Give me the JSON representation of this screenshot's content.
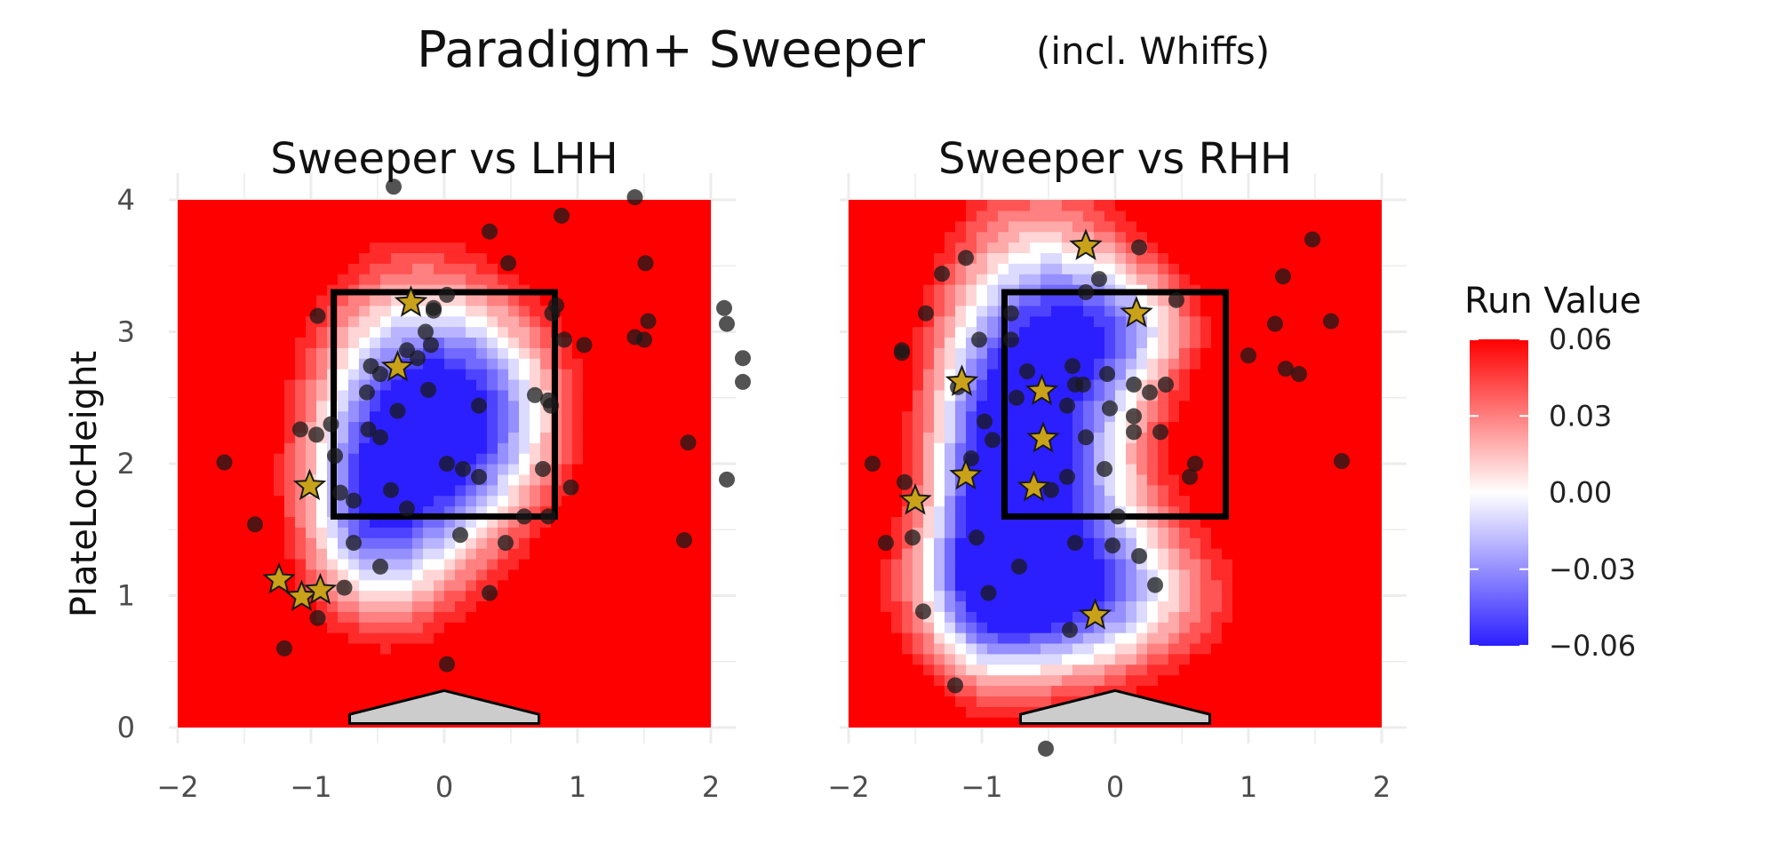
{
  "chart_data": {
    "type": "heatmap",
    "title": "Paradigm+ Sweeper",
    "subtitle": "(incl. Whiffs)",
    "ylabel": "PlateLocHeight",
    "xlabel": "",
    "xlim": [
      -2,
      2
    ],
    "ylim": [
      0,
      4
    ],
    "x_ticks": [
      "−2",
      "−1",
      "0",
      "1",
      "2"
    ],
    "y_ticks": [
      "0",
      "1",
      "2",
      "3",
      "4"
    ],
    "legend": {
      "title": "Run Value",
      "placement": "right",
      "range": [
        -0.06,
        0.06
      ],
      "ticks": [
        "0.06",
        "0.03",
        "0.00",
        "−0.03",
        "−0.06"
      ],
      "colors": {
        "low": "#2b1fff",
        "mid": "#ffffff",
        "high": "#ff0000"
      }
    },
    "strike_zone": {
      "x": [
        -0.83,
        0.83
      ],
      "y": [
        1.6,
        3.3
      ]
    },
    "panels": [
      {
        "title": "Sweeper vs LHH",
        "hotspots": [
          {
            "x": -0.3,
            "y": 2.2,
            "sx": 0.55,
            "sy": 0.9,
            "w": 0.13
          },
          {
            "x": 0.35,
            "y": 2.4,
            "sx": 0.5,
            "sy": 0.6,
            "w": 0.08
          },
          {
            "x": -0.6,
            "y": 1.5,
            "sx": 0.35,
            "sy": 0.5,
            "w": 0.05
          }
        ],
        "pitches": [
          {
            "x": -0.38,
            "y": 4.1
          },
          {
            "x": -1.65,
            "y": 2.01
          },
          {
            "x": -1.42,
            "y": 1.54
          },
          {
            "x": -1.2,
            "y": 0.6
          },
          {
            "x": -1.08,
            "y": 2.26
          },
          {
            "x": -0.96,
            "y": 2.22
          },
          {
            "x": -0.85,
            "y": 2.3
          },
          {
            "x": -0.82,
            "y": 2.06
          },
          {
            "x": -0.78,
            "y": 1.78
          },
          {
            "x": -0.75,
            "y": 1.06
          },
          {
            "x": -0.68,
            "y": 1.72
          },
          {
            "x": -0.68,
            "y": 1.4
          },
          {
            "x": -0.55,
            "y": 2.74
          },
          {
            "x": -0.58,
            "y": 2.54
          },
          {
            "x": -0.57,
            "y": 2.26
          },
          {
            "x": -0.48,
            "y": 2.2
          },
          {
            "x": -0.48,
            "y": 2.68
          },
          {
            "x": -0.28,
            "y": 2.86
          },
          {
            "x": -0.2,
            "y": 2.8
          },
          {
            "x": -0.14,
            "y": 3.0
          },
          {
            "x": -0.1,
            "y": 2.9
          },
          {
            "x": -0.08,
            "y": 3.18
          },
          {
            "x": 0.02,
            "y": 3.28
          },
          {
            "x": -0.35,
            "y": 2.4
          },
          {
            "x": -0.4,
            "y": 1.8
          },
          {
            "x": -0.28,
            "y": 1.66
          },
          {
            "x": -0.48,
            "y": 1.22
          },
          {
            "x": -0.12,
            "y": 2.56
          },
          {
            "x": 0.02,
            "y": 2.0
          },
          {
            "x": 0.14,
            "y": 1.96
          },
          {
            "x": 0.26,
            "y": 1.9
          },
          {
            "x": 0.46,
            "y": 1.4
          },
          {
            "x": 0.6,
            "y": 1.6
          },
          {
            "x": 0.74,
            "y": 1.96
          },
          {
            "x": 0.78,
            "y": 1.6
          },
          {
            "x": 0.12,
            "y": 1.46
          },
          {
            "x": 0.26,
            "y": 2.44
          },
          {
            "x": 0.34,
            "y": 1.02
          },
          {
            "x": 0.68,
            "y": 2.52
          },
          {
            "x": 0.78,
            "y": 2.48
          },
          {
            "x": 0.8,
            "y": 2.44
          },
          {
            "x": 0.9,
            "y": 2.94
          },
          {
            "x": 1.05,
            "y": 2.9
          },
          {
            "x": 0.95,
            "y": 1.82
          },
          {
            "x": 0.81,
            "y": 3.14
          },
          {
            "x": 0.84,
            "y": 3.2
          },
          {
            "x": -0.08,
            "y": 3.16
          },
          {
            "x": 0.34,
            "y": 3.76
          },
          {
            "x": 0.48,
            "y": 3.52
          },
          {
            "x": 0.88,
            "y": 3.88
          },
          {
            "x": 1.43,
            "y": 2.96
          },
          {
            "x": 1.5,
            "y": 2.94
          },
          {
            "x": 1.51,
            "y": 3.52
          },
          {
            "x": 1.53,
            "y": 3.08
          },
          {
            "x": 1.43,
            "y": 4.02
          },
          {
            "x": 1.83,
            "y": 2.16
          },
          {
            "x": 1.8,
            "y": 1.42
          },
          {
            "x": 2.1,
            "y": 3.18
          },
          {
            "x": 2.12,
            "y": 3.06
          },
          {
            "x": 2.24,
            "y": 2.8
          },
          {
            "x": 2.12,
            "y": 1.88
          },
          {
            "x": 2.24,
            "y": 2.62
          },
          {
            "x": -0.95,
            "y": 0.83
          },
          {
            "x": 0.02,
            "y": 0.48
          },
          {
            "x": -0.95,
            "y": 3.12
          }
        ],
        "stars": [
          {
            "x": -0.25,
            "y": 3.22
          },
          {
            "x": -0.35,
            "y": 2.73
          },
          {
            "x": -1.01,
            "y": 1.83
          },
          {
            "x": -1.24,
            "y": 1.12
          },
          {
            "x": -1.07,
            "y": 0.99
          },
          {
            "x": -0.93,
            "y": 1.04
          }
        ]
      },
      {
        "title": "Sweeper vs RHH",
        "hotspots": [
          {
            "x": -0.55,
            "y": 2.4,
            "sx": 0.55,
            "sy": 1.1,
            "w": 0.15
          },
          {
            "x": -0.35,
            "y": 1.0,
            "sx": 0.85,
            "sy": 0.45,
            "w": 0.1
          },
          {
            "x": 0.1,
            "y": 3.05,
            "sx": 0.45,
            "sy": 0.35,
            "w": 0.06
          },
          {
            "x": -1.0,
            "y": 1.6,
            "sx": 0.3,
            "sy": 0.9,
            "w": 0.06
          }
        ],
        "pitches": [
          {
            "x": -1.58,
            "y": 1.86
          },
          {
            "x": -1.52,
            "y": 1.44
          },
          {
            "x": -1.44,
            "y": 0.88
          },
          {
            "x": -1.3,
            "y": 3.44
          },
          {
            "x": -1.2,
            "y": 0.32
          },
          {
            "x": -1.18,
            "y": 2.58
          },
          {
            "x": -1.08,
            "y": 2.04
          },
          {
            "x": -1.04,
            "y": 1.44
          },
          {
            "x": -1.02,
            "y": 2.94
          },
          {
            "x": -0.98,
            "y": 2.32
          },
          {
            "x": -0.95,
            "y": 1.02
          },
          {
            "x": -0.92,
            "y": 2.18
          },
          {
            "x": -0.78,
            "y": 3.14
          },
          {
            "x": -0.78,
            "y": 2.94
          },
          {
            "x": -0.74,
            "y": 2.5
          },
          {
            "x": -0.72,
            "y": 1.22
          },
          {
            "x": -0.66,
            "y": 2.7
          },
          {
            "x": -0.48,
            "y": 1.8
          },
          {
            "x": -0.36,
            "y": 2.44
          },
          {
            "x": -0.36,
            "y": 1.9
          },
          {
            "x": -0.32,
            "y": 2.74
          },
          {
            "x": -0.3,
            "y": 2.6
          },
          {
            "x": -0.3,
            "y": 1.4
          },
          {
            "x": -0.34,
            "y": 0.74
          },
          {
            "x": -0.24,
            "y": 2.6
          },
          {
            "x": -0.22,
            "y": 2.2
          },
          {
            "x": -0.22,
            "y": 3.3
          },
          {
            "x": -0.12,
            "y": 3.4
          },
          {
            "x": -0.08,
            "y": 1.96
          },
          {
            "x": -0.06,
            "y": 2.68
          },
          {
            "x": -0.04,
            "y": 2.42
          },
          {
            "x": 0.02,
            "y": 1.6
          },
          {
            "x": -0.02,
            "y": 1.38
          },
          {
            "x": 0.14,
            "y": 2.6
          },
          {
            "x": 0.14,
            "y": 2.24
          },
          {
            "x": 0.14,
            "y": 2.36
          },
          {
            "x": 0.18,
            "y": 1.3
          },
          {
            "x": 0.26,
            "y": 2.54
          },
          {
            "x": 0.3,
            "y": 1.08
          },
          {
            "x": 0.34,
            "y": 2.24
          },
          {
            "x": 0.38,
            "y": 2.6
          },
          {
            "x": 0.46,
            "y": 3.24
          },
          {
            "x": 0.56,
            "y": 1.9
          },
          {
            "x": 0.6,
            "y": 2.0
          },
          {
            "x": 1.0,
            "y": 2.82
          },
          {
            "x": 1.2,
            "y": 3.06
          },
          {
            "x": 1.28,
            "y": 2.72
          },
          {
            "x": 1.26,
            "y": 3.42
          },
          {
            "x": 1.38,
            "y": 2.68
          },
          {
            "x": 1.48,
            "y": 3.7
          },
          {
            "x": 1.62,
            "y": 3.08
          },
          {
            "x": 1.7,
            "y": 2.02
          },
          {
            "x": 0.18,
            "y": 3.64
          },
          {
            "x": -1.12,
            "y": 3.56
          },
          {
            "x": -1.82,
            "y": 2.0
          },
          {
            "x": -1.6,
            "y": 2.86
          },
          {
            "x": -1.6,
            "y": 2.84
          },
          {
            "x": -1.72,
            "y": 1.4
          },
          {
            "x": -1.42,
            "y": 3.14
          },
          {
            "x": -0.52,
            "y": -0.16
          }
        ],
        "stars": [
          {
            "x": -0.22,
            "y": 3.65
          },
          {
            "x": 0.16,
            "y": 3.14
          },
          {
            "x": -1.15,
            "y": 2.62
          },
          {
            "x": -0.55,
            "y": 2.55
          },
          {
            "x": -0.54,
            "y": 2.19
          },
          {
            "x": -1.12,
            "y": 1.91
          },
          {
            "x": -0.61,
            "y": 1.82
          },
          {
            "x": -1.5,
            "y": 1.72
          },
          {
            "x": -0.15,
            "y": 0.85
          }
        ]
      }
    ]
  }
}
